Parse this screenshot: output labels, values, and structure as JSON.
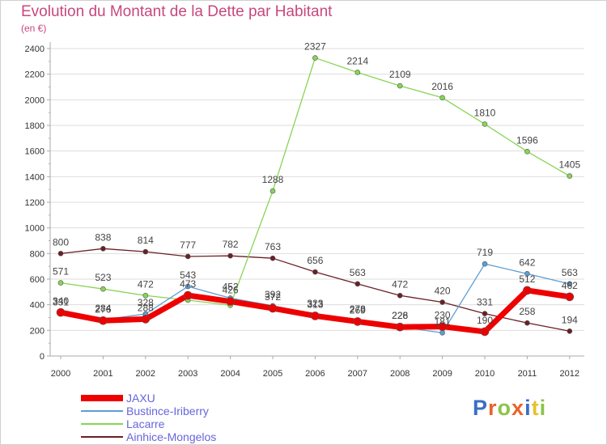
{
  "header": {
    "title": "Evolution du Montant de la Dette par Habitant",
    "unit": "(en €)"
  },
  "logo": {
    "text": "Proxiti"
  },
  "colors": {
    "axis": "#aaaaaa",
    "grid": "#dddddd",
    "tick_text": "#333333",
    "label_text": "#444444",
    "title": "#c8477e",
    "legend_text": "#6666dd"
  },
  "chart_data": {
    "type": "line",
    "x": [
      "2000",
      "2001",
      "2002",
      "2003",
      "2004",
      "2005",
      "2006",
      "2007",
      "2008",
      "2009",
      "2010",
      "2011",
      "2012"
    ],
    "ylim": [
      0,
      2400
    ],
    "yticks": [
      0,
      200,
      400,
      600,
      800,
      1000,
      1200,
      1400,
      1600,
      1800,
      2000,
      2200,
      2400
    ],
    "grid": "horizontal",
    "legend_position": "bottom-left",
    "series": [
      {
        "name": "Ainhice-Mongelos",
        "color": "#6b1f25",
        "width": 1.3,
        "marker": 3,
        "values": [
          800,
          838,
          814,
          777,
          782,
          763,
          656,
          563,
          472,
          420,
          331,
          258,
          194
        ],
        "labels": [
          800,
          838,
          814,
          777,
          782,
          763,
          656,
          563,
          472,
          420,
          331,
          258,
          194
        ]
      },
      {
        "name": "Lacarre",
        "color": "#88d455",
        "width": 1.3,
        "marker": 3,
        "values": [
          571,
          523,
          472,
          436,
          396,
          1288,
          2327,
          2214,
          2109,
          2016,
          1810,
          1596,
          1405
        ],
        "labels": [
          571,
          523,
          472,
          null,
          null,
          1288,
          2327,
          2214,
          2109,
          2016,
          1810,
          1596,
          1405
        ]
      },
      {
        "name": "Bustince-Iriberry",
        "color": "#5d9ed3",
        "width": 1.3,
        "marker": 3,
        "values": [
          331,
          284,
          328,
          543,
          452,
          392,
          323,
          278,
          228,
          181,
          719,
          642,
          563
        ],
        "labels": [
          331,
          284,
          328,
          543,
          452,
          392,
          323,
          278,
          228,
          181,
          719,
          642,
          563
        ]
      },
      {
        "name": "JAXU",
        "color": "#ee0000",
        "width": 7,
        "marker": 5,
        "values": [
          340,
          276,
          288,
          473,
          426,
          372,
          313,
          269,
          226,
          230,
          190,
          512,
          462
        ],
        "labels": [
          340,
          276,
          288,
          473,
          426,
          372,
          313,
          269,
          226,
          230,
          190,
          512,
          462
        ]
      }
    ],
    "legend": [
      {
        "name": "JAXU",
        "color": "#ee0000",
        "thickness": 8
      },
      {
        "name": "Bustince-Iriberry",
        "color": "#5d9ed3",
        "thickness": 2
      },
      {
        "name": "Lacarre",
        "color": "#88d455",
        "thickness": 2
      },
      {
        "name": "Ainhice-Mongelos",
        "color": "#6b1f25",
        "thickness": 2
      }
    ]
  }
}
